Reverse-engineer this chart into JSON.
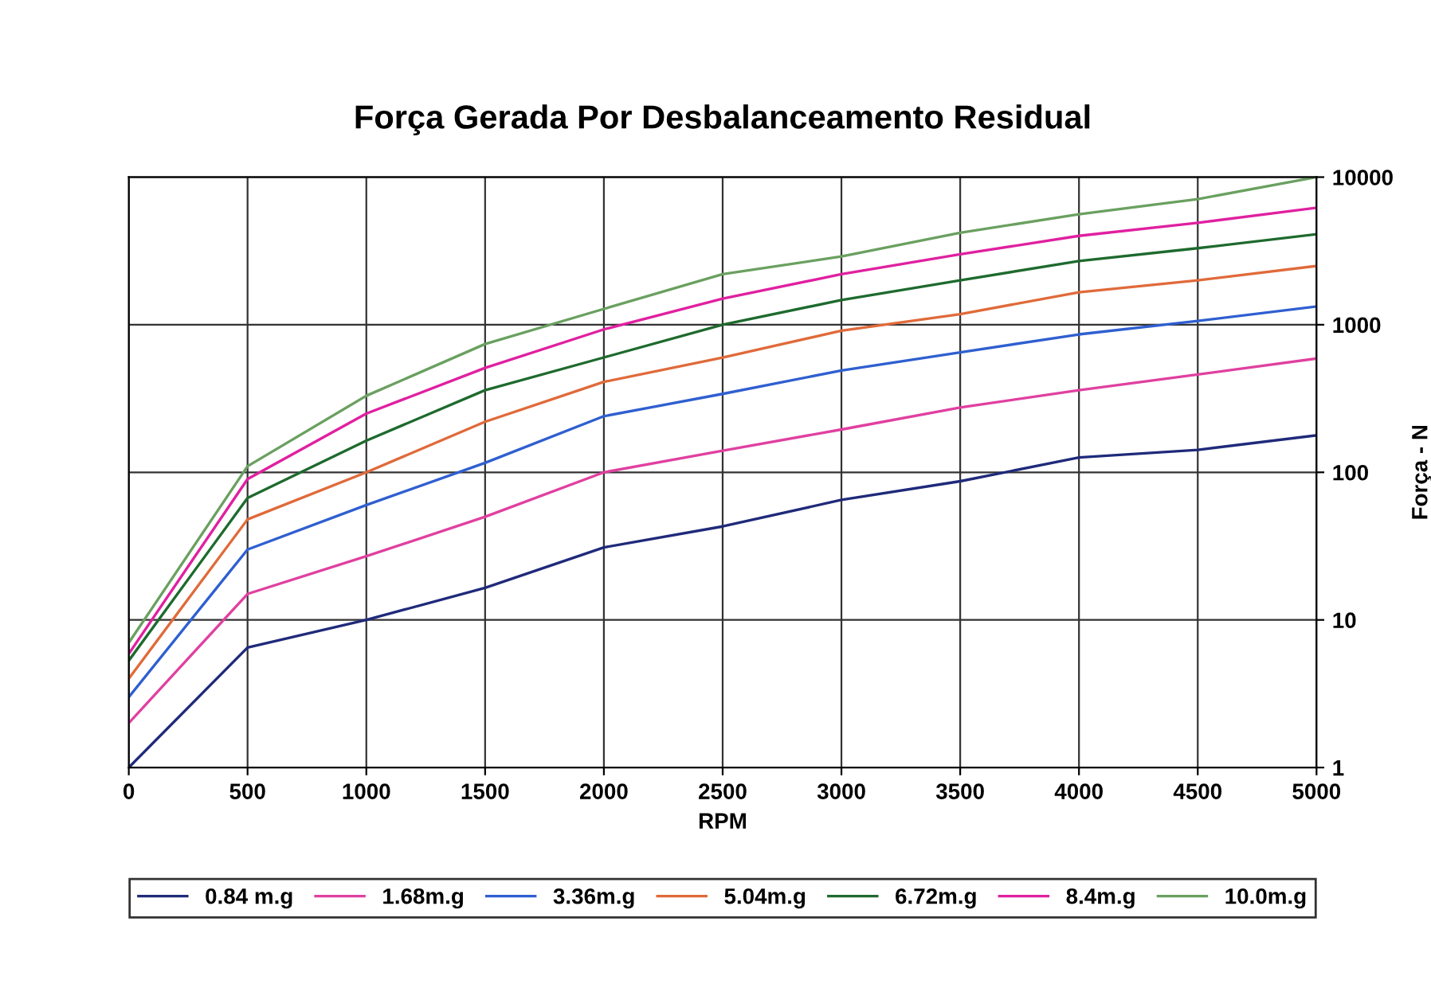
{
  "chart_data": {
    "type": "line",
    "title": "Força Gerada Por Desbalanceamento Residual",
    "xlabel": "RPM",
    "ylabel": "Força - N",
    "x": [
      0,
      500,
      1000,
      1500,
      2000,
      2500,
      3000,
      3500,
      4000,
      4500,
      5000
    ],
    "series": [
      {
        "name": "0.84 m.g",
        "color": "#1f2a7a",
        "values": [
          1.0,
          6.5,
          10,
          16.5,
          31,
          43,
          65,
          87,
          126,
          142,
          178
        ]
      },
      {
        "name": "1.68m.g",
        "color": "#e040a0",
        "values": [
          2.0,
          15,
          27,
          50,
          100,
          140,
          195,
          275,
          360,
          460,
          590
        ]
      },
      {
        "name": "3.36m.g",
        "color": "#2f5fd0",
        "values": [
          3.0,
          30,
          60,
          116,
          240,
          340,
          490,
          650,
          860,
          1060,
          1330
        ]
      },
      {
        "name": "5.04m.g",
        "color": "#e06a3a",
        "values": [
          4.0,
          48,
          100,
          220,
          410,
          600,
          910,
          1180,
          1660,
          2000,
          2500
        ]
      },
      {
        "name": "6.72m.g",
        "color": "#1e6a2e",
        "values": [
          5.3,
          67,
          164,
          360,
          600,
          1000,
          1470,
          2000,
          2700,
          3300,
          4100
        ]
      },
      {
        "name": "8.4m.g",
        "color": "#e020a0",
        "values": [
          5.9,
          90,
          250,
          510,
          930,
          1500,
          2200,
          3000,
          4000,
          4900,
          6200
        ]
      },
      {
        "name": "10.0m.g",
        "color": "#6aa060",
        "values": [
          7.0,
          110,
          330,
          740,
          1280,
          2200,
          2900,
          4200,
          5600,
          7100,
          10000
        ]
      }
    ],
    "xlim": [
      0,
      5000
    ],
    "xticks": [
      0,
      500,
      1000,
      1500,
      2000,
      2500,
      3000,
      3500,
      4000,
      4500,
      5000
    ],
    "ylim": [
      1,
      10000
    ],
    "yticks": [
      1,
      10,
      100,
      1000,
      10000
    ],
    "log": "y",
    "grid": true,
    "legend": "bottom",
    "marker": "none",
    "line_style": "solid"
  }
}
